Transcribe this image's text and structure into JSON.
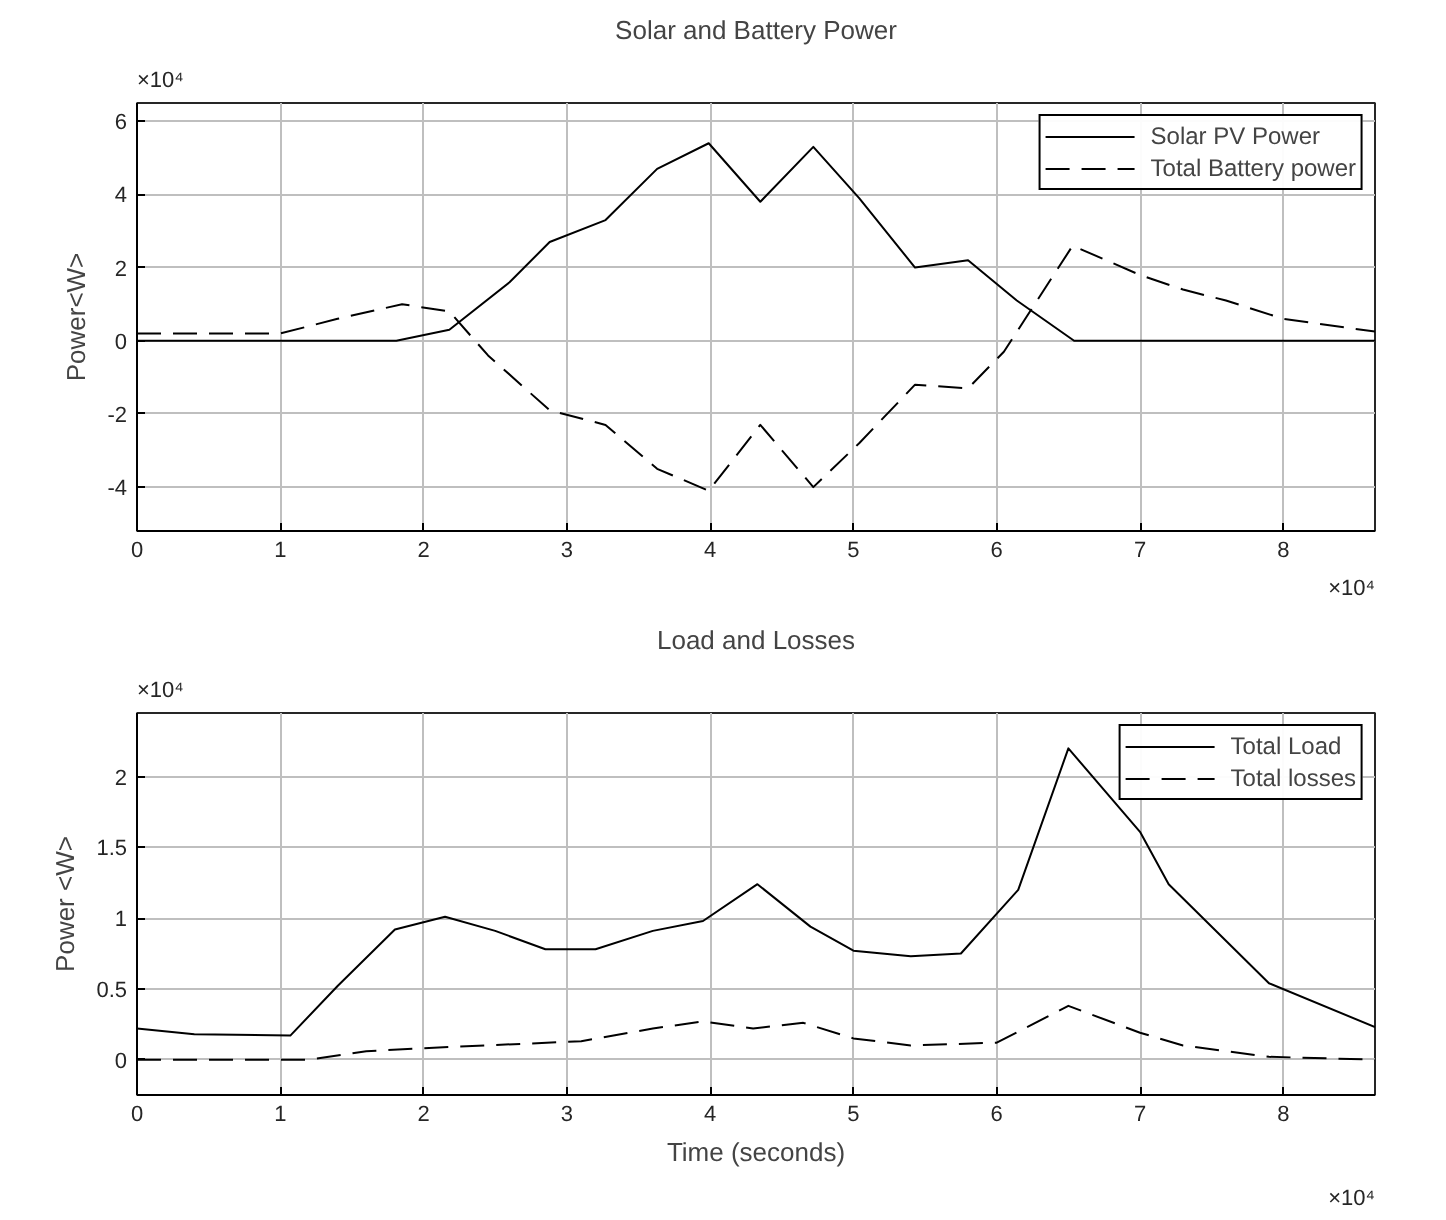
{
  "chart_data": [
    {
      "type": "line",
      "title": "Solar and Battery Power",
      "ylabel": "Power<W>",
      "annotations": [
        "×10⁴",
        "×10⁴"
      ],
      "xlim": [
        0,
        8.64
      ],
      "xticks": [
        0,
        1,
        2,
        3,
        4,
        5,
        6,
        7,
        8
      ],
      "ylim": [
        -5.2,
        6.5
      ],
      "yticks": [
        -4,
        -2,
        0,
        2,
        4,
        6
      ],
      "grid": true,
      "legend": "top right",
      "series": [
        {
          "name": "Solar PV Power",
          "color": "#000000",
          "line_style": "solid",
          "x": [
            0,
            1.81,
            2.18,
            2.6,
            2.88,
            3.27,
            3.63,
            3.99,
            4.35,
            4.72,
            5.04,
            5.43,
            5.8,
            6.14,
            6.54,
            8.64
          ],
          "values": [
            0,
            0,
            0.3,
            1.6,
            2.7,
            3.3,
            4.7,
            5.4,
            3.8,
            5.3,
            3.9,
            2.0,
            2.2,
            1.1,
            0,
            0
          ]
        },
        {
          "name": "Total Battery power",
          "color": "#000000",
          "line_style": "dashed",
          "x": [
            0,
            1.0,
            1.4,
            1.85,
            2.18,
            2.45,
            2.88,
            3.27,
            3.63,
            3.99,
            4.35,
            4.72,
            5.04,
            5.43,
            5.8,
            6.05,
            6.53,
            7.0,
            7.3,
            7.6,
            8.0,
            8.64
          ],
          "values": [
            0.2,
            0.2,
            0.6,
            1.0,
            0.8,
            -0.4,
            -1.9,
            -2.3,
            -3.5,
            -4.1,
            -2.3,
            -4.0,
            -2.8,
            -1.2,
            -1.3,
            -0.3,
            2.6,
            1.8,
            1.4,
            1.1,
            0.6,
            0.25
          ]
        }
      ]
    },
    {
      "type": "line",
      "title": "Load and Losses",
      "xlabel": "Time (seconds)",
      "ylabel": "Power <W>",
      "annotations": [
        "×10⁴",
        "×10⁴"
      ],
      "xlim": [
        0,
        8.64
      ],
      "xticks": [
        0,
        1,
        2,
        3,
        4,
        5,
        6,
        7,
        8
      ],
      "ylim": [
        -0.25,
        2.45
      ],
      "yticks": [
        0,
        0.5,
        1,
        1.5,
        2
      ],
      "grid": true,
      "legend": "top right",
      "series": [
        {
          "name": "Total Load",
          "color": "#000000",
          "line_style": "solid",
          "x": [
            0,
            0.4,
            1.07,
            1.4,
            1.8,
            2.15,
            2.5,
            2.85,
            3.2,
            3.6,
            3.95,
            4.33,
            4.7,
            5.0,
            5.4,
            5.75,
            6.15,
            6.5,
            7.0,
            7.2,
            7.9,
            8.64
          ],
          "values": [
            0.22,
            0.18,
            0.17,
            0.52,
            0.92,
            1.01,
            0.91,
            0.78,
            0.78,
            0.91,
            0.98,
            1.24,
            0.94,
            0.77,
            0.73,
            0.75,
            1.2,
            2.2,
            1.61,
            1.24,
            0.54,
            0.23
          ]
        },
        {
          "name": "Total losses",
          "color": "#000000",
          "line_style": "dashed",
          "x": [
            0,
            1.2,
            1.6,
            2.2,
            3.1,
            3.6,
            3.95,
            4.3,
            4.65,
            5.0,
            5.4,
            6.0,
            6.5,
            7.0,
            7.3,
            7.9,
            8.64
          ],
          "values": [
            0,
            0,
            0.06,
            0.09,
            0.13,
            0.22,
            0.27,
            0.22,
            0.26,
            0.15,
            0.1,
            0.12,
            0.38,
            0.19,
            0.1,
            0.02,
            0
          ]
        }
      ]
    }
  ]
}
